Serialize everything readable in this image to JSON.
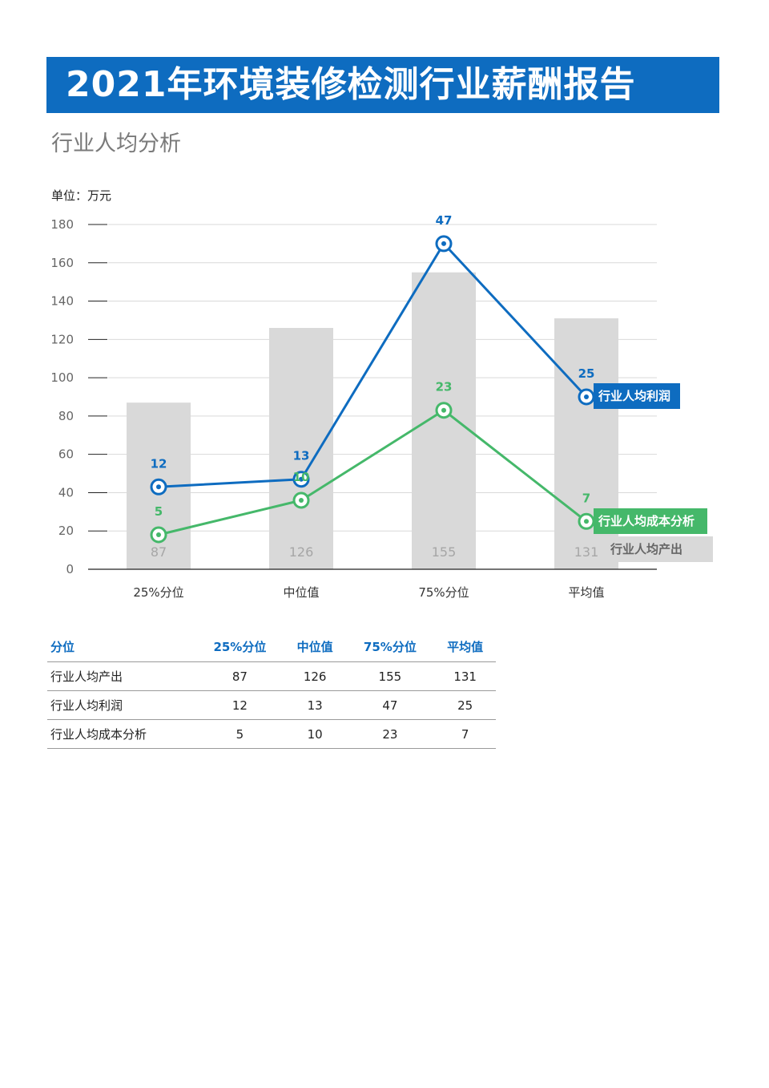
{
  "report": {
    "title": "2021年环境装修检测行业薪酬报告",
    "section_title": "行业人均分析",
    "unit_label": "单位：万元"
  },
  "colors": {
    "accent_blue": "#0e6cc0",
    "accent_green": "#45b86a",
    "bar_gray": "#d9d9d9"
  },
  "chart_data": {
    "type": "bar",
    "categories": [
      "25%分位",
      "中位值",
      "75%分位",
      "平均值"
    ],
    "ylim": [
      0,
      180
    ],
    "yticks": [
      0,
      20,
      40,
      60,
      80,
      100,
      120,
      140,
      160,
      180
    ],
    "grid": true,
    "series": [
      {
        "name": "行业人均产出",
        "type": "bar",
        "values": [
          87,
          126,
          155,
          131
        ],
        "labels": [
          "87",
          "126",
          "155",
          "131"
        ],
        "color": "#d9d9d9"
      },
      {
        "name": "行业人均利润",
        "type": "line",
        "values": [
          43,
          47,
          170,
          90
        ],
        "labels": [
          "12",
          "13",
          "47",
          "25"
        ],
        "color": "#0e6cc0"
      },
      {
        "name": "行业人均成本分析",
        "type": "line",
        "values": [
          18,
          36,
          83,
          25
        ],
        "labels": [
          "5",
          "10",
          "23",
          "7"
        ],
        "color": "#45b86a"
      }
    ]
  },
  "table": {
    "headers": [
      "分位",
      "25%分位",
      "中位值",
      "75%分位",
      "平均值"
    ],
    "rows": [
      {
        "name": "行业人均产出",
        "values": [
          "87",
          "126",
          "155",
          "131"
        ]
      },
      {
        "name": "行业人均利润",
        "values": [
          "12",
          "13",
          "47",
          "25"
        ]
      },
      {
        "name": "行业人均成本分析",
        "values": [
          "5",
          "10",
          "23",
          "7"
        ]
      }
    ]
  }
}
